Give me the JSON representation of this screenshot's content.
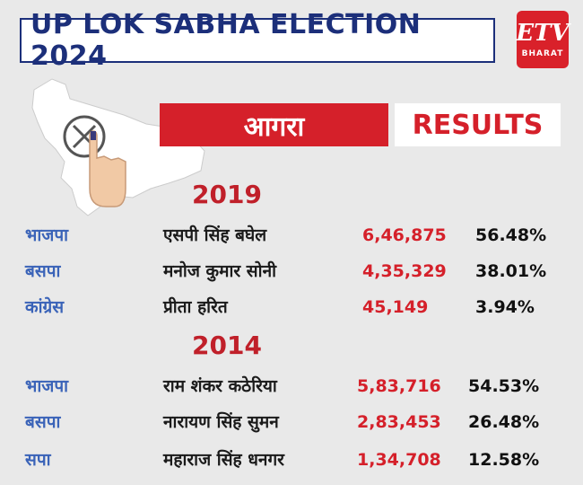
{
  "header": {
    "title": "UP LOK SABHA ELECTION 2024"
  },
  "logo": {
    "mark": "ETV",
    "sub": "BHARAT"
  },
  "constituency": {
    "name": "आगरा",
    "results_label": "RESULTS"
  },
  "colors": {
    "accent_red": "#d5202a",
    "navy": "#1c2f7a",
    "party_blue": "#3a63b8"
  },
  "elections": [
    {
      "year": "2019",
      "rows": [
        {
          "party": "भाजपा",
          "candidate": "एसपी सिंह बघेल",
          "votes": "6,46,875",
          "percent": "56.48%"
        },
        {
          "party": "बसपा",
          "candidate": "मनोज कुमार सोनी",
          "votes": "4,35,329",
          "percent": "38.01%"
        },
        {
          "party": "कांग्रेस",
          "candidate": "प्रीता हरित",
          "votes": "45,149",
          "percent": "3.94%"
        }
      ]
    },
    {
      "year": "2014",
      "rows": [
        {
          "party": "भाजपा",
          "candidate": "राम शंकर कठेरिया",
          "votes": "5,83,716",
          "percent": "54.53%"
        },
        {
          "party": "बसपा",
          "candidate": "नारायण सिंह सुमन",
          "votes": "2,83,453",
          "percent": "26.48%"
        },
        {
          "party": "सपा",
          "candidate": "महाराज सिंह धनगर",
          "votes": "1,34,708",
          "percent": "12.58%"
        }
      ]
    }
  ]
}
